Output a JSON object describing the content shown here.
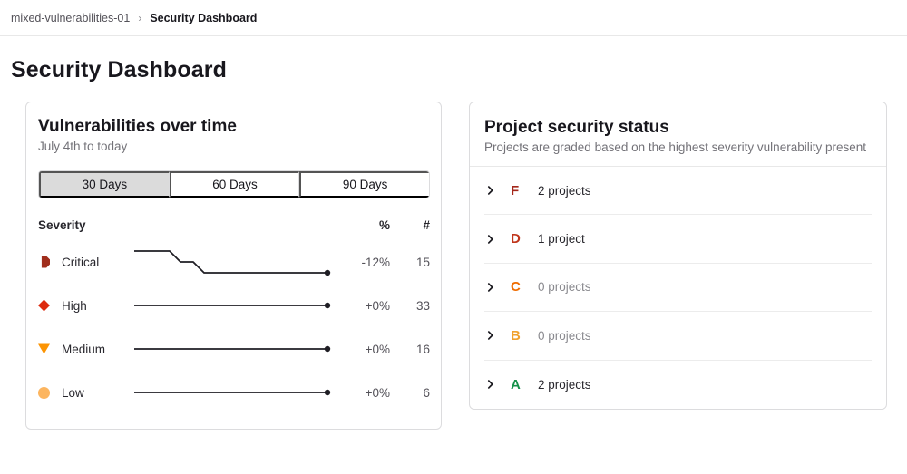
{
  "breadcrumb": {
    "project": "mixed-vulnerabilities-01",
    "separator": "›",
    "current": "Security Dashboard"
  },
  "page": {
    "title": "Security Dashboard"
  },
  "vuln_card": {
    "title": "Vulnerabilities over time",
    "subtitle": "July 4th to today",
    "tabs": [
      {
        "label": "30 Days",
        "selected": true
      },
      {
        "label": "60 Days",
        "selected": false
      },
      {
        "label": "90 Days",
        "selected": false
      }
    ],
    "trend_color": "#1f1e24",
    "table": {
      "header": {
        "severity": "Severity",
        "percent": "%",
        "count": "#"
      },
      "rows": [
        {
          "icon": "severity-critical-icon",
          "color": "#a02e1c",
          "label": "Critical",
          "percent": "-12%",
          "count": "15",
          "trend": [
            [
              1,
              10
            ],
            [
              40,
              10
            ],
            [
              52,
              22
            ],
            [
              66,
              22
            ],
            [
              78,
              34
            ],
            [
              214,
              34
            ]
          ]
        },
        {
          "icon": "severity-high-icon",
          "color": "#dd2b0e",
          "label": "High",
          "percent": "+0%",
          "count": "33",
          "trend": [
            [
              1,
              22
            ],
            [
              214,
              22
            ]
          ]
        },
        {
          "icon": "severity-medium-icon",
          "color": "#fc9403",
          "label": "Medium",
          "percent": "+0%",
          "count": "16",
          "trend": [
            [
              1,
              22
            ],
            [
              214,
              22
            ]
          ]
        },
        {
          "icon": "severity-low-icon",
          "color": "#fcb55f",
          "label": "Low",
          "percent": "+0%",
          "count": "6",
          "trend": [
            [
              1,
              22
            ],
            [
              214,
              22
            ]
          ]
        }
      ]
    }
  },
  "status_card": {
    "title": "Project security status",
    "subtitle": "Projects are graded based on the highest severity vulnerability present",
    "rows": [
      {
        "grade": "F",
        "grade_color": "#a4271a",
        "label": "2 projects",
        "label_color": "#28272d"
      },
      {
        "grade": "D",
        "grade_color": "#c0351b",
        "label": "1 project",
        "label_color": "#28272d"
      },
      {
        "grade": "C",
        "grade_color": "#ef6c00",
        "label": "0 projects",
        "label_color": "#8a8a8f"
      },
      {
        "grade": "B",
        "grade_color": "#f0a12e",
        "label": "0 projects",
        "label_color": "#8a8a8f"
      },
      {
        "grade": "A",
        "grade_color": "#16914a",
        "label": "2 projects",
        "label_color": "#28272d"
      }
    ]
  }
}
